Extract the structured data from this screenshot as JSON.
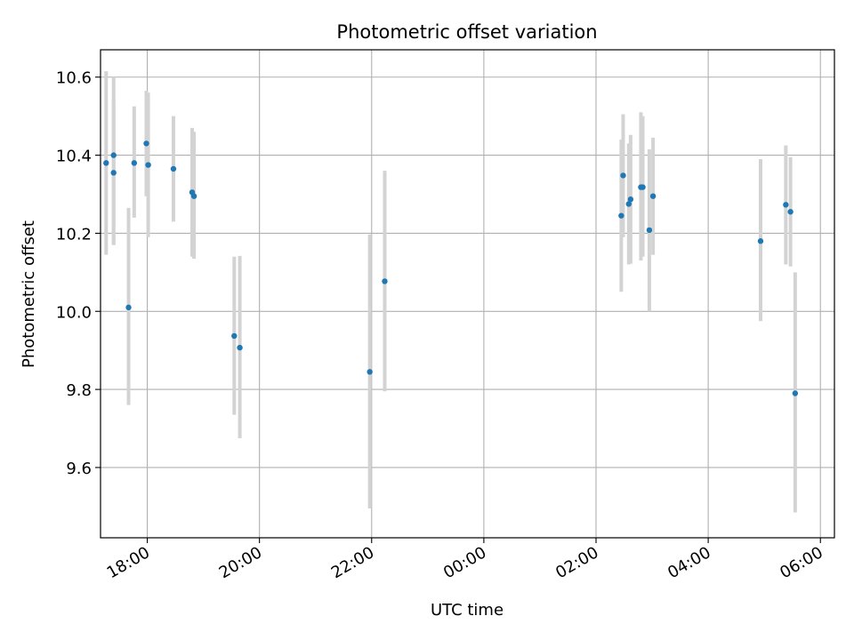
{
  "chart_data": {
    "type": "scatter",
    "title": "Photometric offset variation",
    "xlabel": "UTC time",
    "ylabel": "Photometric offset",
    "xlim": [
      "17:10",
      "30:15"
    ],
    "ylim": [
      9.42,
      10.67
    ],
    "grid": true,
    "x_ticks": [
      {
        "value": "18:00",
        "label": "18:00"
      },
      {
        "value": "20:00",
        "label": "20:00"
      },
      {
        "value": "22:00",
        "label": "22:00"
      },
      {
        "value": "24:00",
        "label": "00:00"
      },
      {
        "value": "26:00",
        "label": "02:00"
      },
      {
        "value": "28:00",
        "label": "04:00"
      },
      {
        "value": "30:00",
        "label": "06:00"
      }
    ],
    "y_ticks": [
      9.6,
      9.8,
      10.0,
      10.2,
      10.4,
      10.6
    ],
    "points": [
      {
        "x": "17:40",
        "y": 10.01,
        "ylow": 9.76,
        "yhigh": 10.265
      },
      {
        "x": "17:16",
        "y": 10.38,
        "ylow": 10.145,
        "yhigh": 10.615
      },
      {
        "x": "17:24",
        "y": 10.4,
        "ylow": 10.17,
        "yhigh": 10.6
      },
      {
        "x": "17:24",
        "y": 10.355,
        "ylow": 10.17,
        "yhigh": 10.54
      },
      {
        "x": "17:46",
        "y": 10.38,
        "ylow": 10.24,
        "yhigh": 10.525
      },
      {
        "x": "17:59",
        "y": 10.43,
        "ylow": 10.295,
        "yhigh": 10.565
      },
      {
        "x": "18:01",
        "y": 10.375,
        "ylow": 10.19,
        "yhigh": 10.56
      },
      {
        "x": "18:28",
        "y": 10.365,
        "ylow": 10.23,
        "yhigh": 10.5
      },
      {
        "x": "18:48",
        "y": 10.305,
        "ylow": 10.14,
        "yhigh": 10.47
      },
      {
        "x": "18:50",
        "y": 10.295,
        "ylow": 10.135,
        "yhigh": 10.46
      },
      {
        "x": "19:33",
        "y": 9.937,
        "ylow": 9.735,
        "yhigh": 10.14
      },
      {
        "x": "19:39",
        "y": 9.907,
        "ylow": 9.675,
        "yhigh": 10.142
      },
      {
        "x": "21:58",
        "y": 9.845,
        "ylow": 9.495,
        "yhigh": 10.197
      },
      {
        "x": "22:14",
        "y": 10.077,
        "ylow": 9.795,
        "yhigh": 10.36
      },
      {
        "x": "26:27",
        "y": 10.245,
        "ylow": 10.05,
        "yhigh": 10.44
      },
      {
        "x": "26:29",
        "y": 10.348,
        "ylow": 10.19,
        "yhigh": 10.505
      },
      {
        "x": "26:35",
        "y": 10.275,
        "ylow": 10.12,
        "yhigh": 10.43
      },
      {
        "x": "26:37",
        "y": 10.287,
        "ylow": 10.122,
        "yhigh": 10.452
      },
      {
        "x": "26:48",
        "y": 10.318,
        "ylow": 10.13,
        "yhigh": 10.51
      },
      {
        "x": "26:50",
        "y": 10.318,
        "ylow": 10.14,
        "yhigh": 10.5
      },
      {
        "x": "26:57",
        "y": 10.208,
        "ylow": 10.0,
        "yhigh": 10.415
      },
      {
        "x": "27:01",
        "y": 10.295,
        "ylow": 10.145,
        "yhigh": 10.445
      },
      {
        "x": "28:56",
        "y": 10.18,
        "ylow": 9.975,
        "yhigh": 10.39
      },
      {
        "x": "29:23",
        "y": 10.273,
        "ylow": 10.12,
        "yhigh": 10.425
      },
      {
        "x": "29:28",
        "y": 10.255,
        "ylow": 10.115,
        "yhigh": 10.395
      },
      {
        "x": "29:33",
        "y": 9.79,
        "ylow": 9.485,
        "yhigh": 10.1
      }
    ],
    "colors": {
      "marker": "#1f77b4",
      "errorbar": "#d3d3d3",
      "grid": "#b0b0b0",
      "axes": "#000000"
    }
  }
}
